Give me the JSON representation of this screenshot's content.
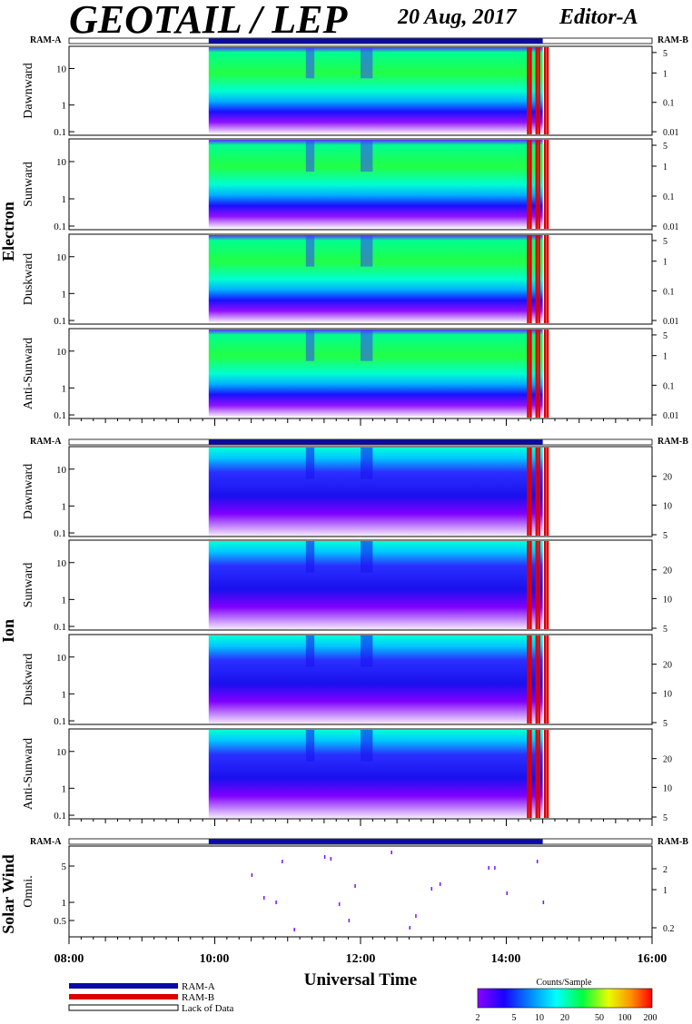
{
  "header": {
    "title": "GEOTAIL / LEP",
    "date": "20 Aug, 2017",
    "editor": "Editor-A"
  },
  "ram_a_label": "RAM-A",
  "ram_b_label": "RAM-B",
  "groups": [
    {
      "label": "Electron"
    },
    {
      "label": "Ion"
    },
    {
      "label": "Solar Wind"
    }
  ],
  "x_axis": {
    "label": "Universal Time",
    "tick_labels": [
      "08:00",
      "10:00",
      "12:00",
      "14:00",
      "16:00"
    ],
    "range_hours": [
      8,
      16
    ]
  },
  "legend": {
    "ram_a": "RAM-A",
    "ram_b": "RAM-B",
    "lack": "Lack of Data",
    "colorbar_title": "Counts/Sample",
    "colorbar_ticks": [
      "2",
      "5",
      "10",
      "20",
      "50",
      "100",
      "200"
    ]
  },
  "colors": {
    "ram_a": "#0a0aa8",
    "ram_b": "#dd0000"
  },
  "chart_data": [
    {
      "type": "heatmap",
      "group": "Electron",
      "ylabel": "Dawnward",
      "left_ticks": [
        "10",
        "1",
        "0.1"
      ],
      "right_ticks": [
        "5",
        "1",
        "0.1",
        "0.01"
      ],
      "data_start_ut": "09:55",
      "data_end_ut": "14:30"
    },
    {
      "type": "heatmap",
      "group": "Electron",
      "ylabel": "Sunward",
      "left_ticks": [
        "10",
        "1",
        "0.1"
      ],
      "right_ticks": [
        "5",
        "1",
        "0.1",
        "0.01"
      ],
      "data_start_ut": "09:55",
      "data_end_ut": "14:30"
    },
    {
      "type": "heatmap",
      "group": "Electron",
      "ylabel": "Duskward",
      "left_ticks": [
        "10",
        "1",
        "0.1"
      ],
      "right_ticks": [
        "5",
        "1",
        "0.1",
        "0.01"
      ],
      "data_start_ut": "09:55",
      "data_end_ut": "14:30"
    },
    {
      "type": "heatmap",
      "group": "Electron",
      "ylabel": "Anti-Sunward",
      "left_ticks": [
        "10",
        "1",
        "0.1"
      ],
      "right_ticks": [
        "5",
        "1",
        "0.1",
        "0.01"
      ],
      "data_start_ut": "09:55",
      "data_end_ut": "14:30"
    },
    {
      "type": "heatmap",
      "group": "Ion",
      "ylabel": "Dawnward",
      "left_ticks": [
        "10",
        "1",
        "0.1"
      ],
      "right_ticks": [
        "20",
        "10",
        "5"
      ],
      "data_start_ut": "09:55",
      "data_end_ut": "14:30"
    },
    {
      "type": "heatmap",
      "group": "Ion",
      "ylabel": "Sunward",
      "left_ticks": [
        "10",
        "1",
        "0.1"
      ],
      "right_ticks": [
        "20",
        "10",
        "5"
      ],
      "data_start_ut": "09:55",
      "data_end_ut": "14:30"
    },
    {
      "type": "heatmap",
      "group": "Ion",
      "ylabel": "Duskward",
      "left_ticks": [
        "10",
        "1",
        "0.1"
      ],
      "right_ticks": [
        "20",
        "10",
        "5"
      ],
      "data_start_ut": "09:55",
      "data_end_ut": "14:30"
    },
    {
      "type": "heatmap",
      "group": "Ion",
      "ylabel": "Anti-Sunward",
      "left_ticks": [
        "10",
        "1",
        "0.1"
      ],
      "right_ticks": [
        "20",
        "10",
        "5"
      ],
      "data_start_ut": "09:55",
      "data_end_ut": "14:30"
    },
    {
      "type": "scatter",
      "group": "Solar Wind",
      "ylabel": "Omni.",
      "left_ticks": [
        "5",
        "1",
        "0.5"
      ],
      "right_ticks": [
        "2",
        "1",
        "0.2"
      ],
      "data_start_ut": "09:55",
      "data_end_ut": "14:30"
    }
  ],
  "ram_b_intervals_ut": [
    [
      "14:17",
      "14:21"
    ],
    [
      "14:24",
      "14:28"
    ],
    [
      "14:31",
      "14:35"
    ]
  ]
}
